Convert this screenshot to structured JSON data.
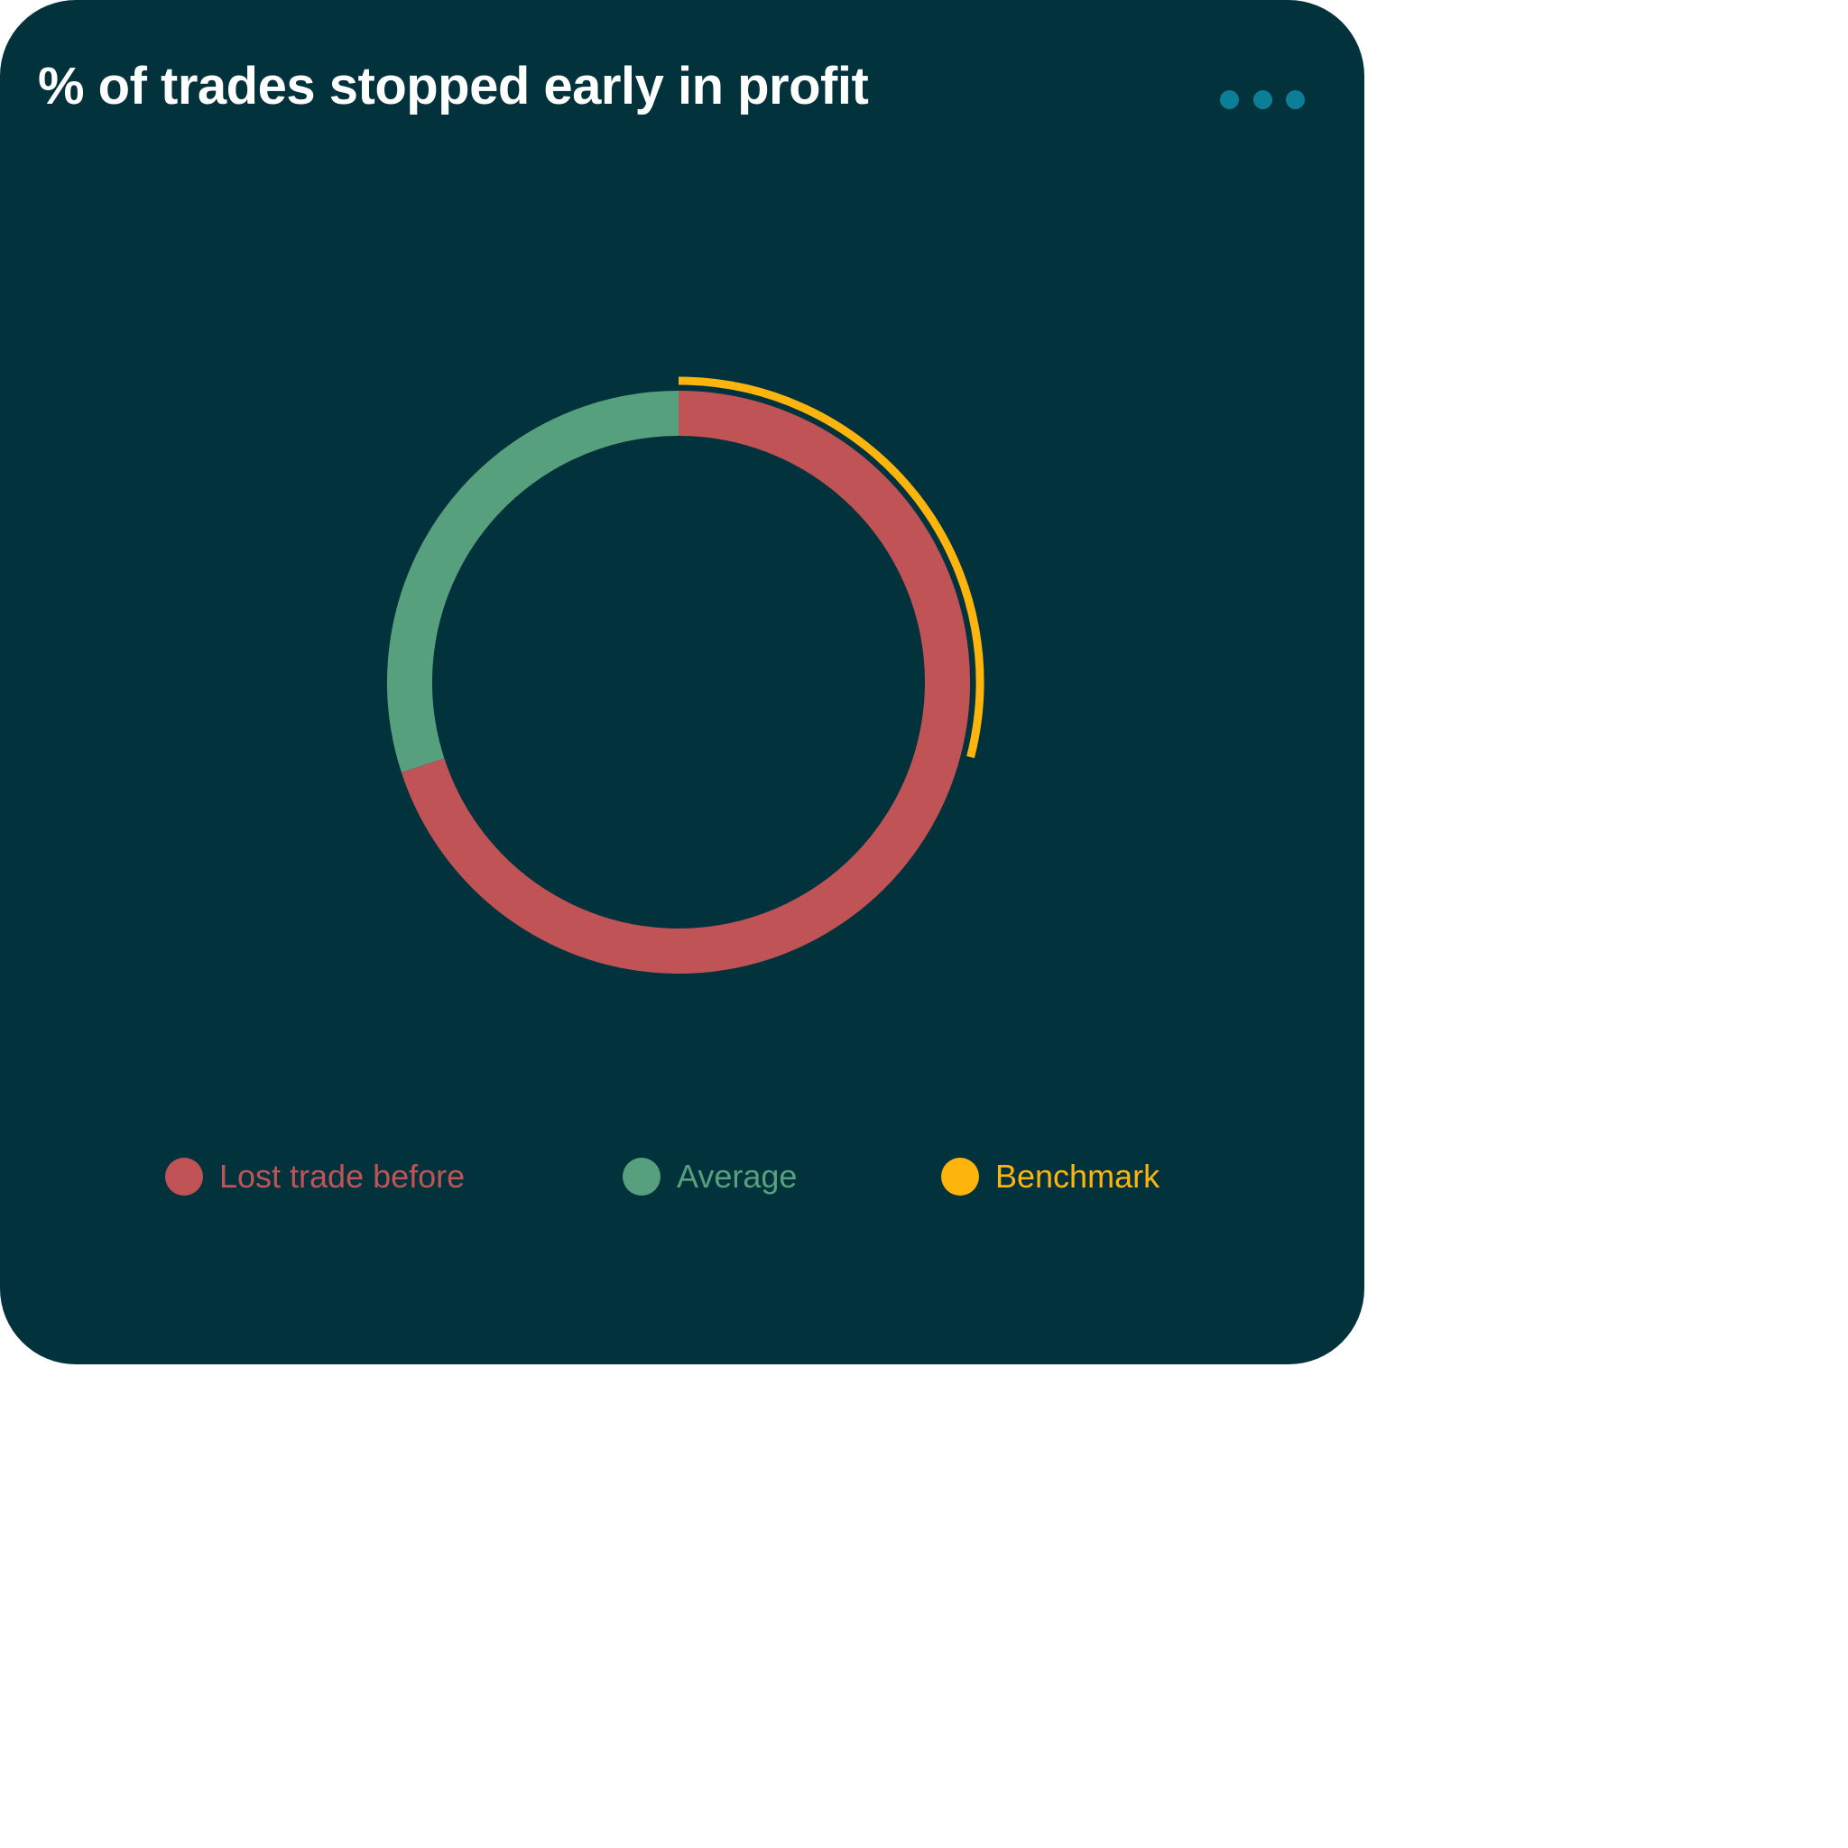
{
  "card": {
    "title": "% of trades stopped early in profit",
    "menu_dots_color": "#0b7f97",
    "background_color": "#02323c"
  },
  "chart_data": {
    "type": "pie",
    "style": "donut",
    "title": "% of trades stopped early in profit",
    "series": [
      {
        "name": "Lost trade before",
        "value": 70,
        "color": "#c05356"
      },
      {
        "name": "Average",
        "value": 30,
        "color": "#57a07e"
      },
      {
        "name": "Benchmark",
        "value": 29,
        "color": "#fdb40c"
      }
    ],
    "legend": {
      "position": "bottom",
      "items": [
        "Lost trade before",
        "Average",
        "Benchmark"
      ]
    }
  }
}
